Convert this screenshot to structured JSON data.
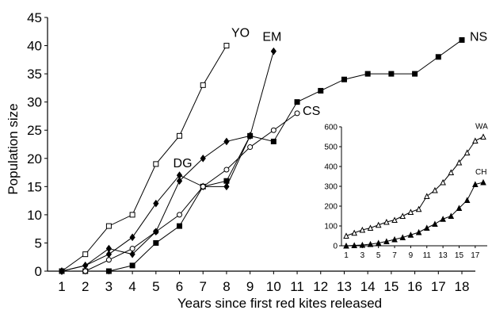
{
  "chart_data": [
    {
      "type": "line",
      "title": "",
      "xlabel": "Years since first red kites released",
      "ylabel": "Population size",
      "xlim": [
        1,
        18
      ],
      "ylim": [
        0,
        45
      ],
      "x_ticks": [
        1,
        2,
        3,
        4,
        5,
        6,
        7,
        8,
        9,
        10,
        11,
        12,
        13,
        14,
        15,
        16,
        17,
        18
      ],
      "y_ticks": [
        0,
        5,
        10,
        15,
        20,
        25,
        30,
        35,
        40,
        45
      ],
      "grid": false,
      "legend": "none; series labeled directly at line ends",
      "series": [
        {
          "name": "YO",
          "marker": "open-square",
          "x": [
            1,
            2,
            3,
            4,
            5,
            6,
            7,
            8
          ],
          "y": [
            0,
            3,
            8,
            10,
            19,
            24,
            33,
            40
          ]
        },
        {
          "name": "EM",
          "marker": "filled-diamond",
          "x": [
            1,
            2,
            3,
            4,
            5,
            6,
            7,
            8,
            9,
            10
          ],
          "y": [
            0,
            1,
            3,
            6,
            12,
            17,
            15,
            15,
            24,
            39
          ]
        },
        {
          "name": "NS",
          "marker": "filled-square",
          "x": [
            1,
            2,
            3,
            4,
            5,
            6,
            7,
            8,
            9,
            10,
            11,
            12,
            13,
            14,
            15,
            16,
            17,
            18
          ],
          "y": [
            0,
            0,
            0,
            1,
            5,
            8,
            15,
            16,
            24,
            23,
            30,
            32,
            34,
            35,
            35,
            35,
            38,
            41
          ]
        },
        {
          "name": "CS",
          "marker": "open-circle",
          "x": [
            1,
            2,
            3,
            4,
            5,
            6,
            7,
            8,
            9,
            10,
            11
          ],
          "y": [
            0,
            0,
            2,
            4,
            7,
            10,
            15,
            18,
            22,
            25,
            28
          ]
        },
        {
          "name": "DG",
          "marker": "filled-diamond",
          "x": [
            1,
            2,
            3,
            4,
            5,
            6,
            7,
            8,
            9
          ],
          "y": [
            0,
            1,
            4,
            3,
            7,
            16,
            20,
            23,
            24
          ]
        }
      ]
    },
    {
      "type": "line",
      "title": "",
      "xlabel": "",
      "ylabel": "",
      "xlim": [
        1,
        18
      ],
      "ylim": [
        0,
        600
      ],
      "x_ticks": [
        1,
        3,
        5,
        7,
        9,
        11,
        13,
        15,
        17
      ],
      "y_ticks": [
        0,
        100,
        200,
        300,
        400,
        500,
        600
      ],
      "grid": false,
      "legend": "none; series labeled directly at line ends",
      "series": [
        {
          "name": "WA",
          "marker": "open-triangle",
          "x": [
            1,
            2,
            3,
            4,
            5,
            6,
            7,
            8,
            9,
            10,
            11,
            12,
            13,
            14,
            15,
            16,
            17,
            18
          ],
          "y": [
            50,
            65,
            80,
            90,
            105,
            120,
            130,
            150,
            170,
            185,
            250,
            280,
            320,
            370,
            420,
            470,
            530,
            550
          ]
        },
        {
          "name": "CH",
          "marker": "filled-triangle",
          "x": [
            1,
            2,
            3,
            4,
            5,
            6,
            7,
            8,
            9,
            10,
            11,
            12,
            13,
            14,
            15,
            16,
            17,
            18
          ],
          "y": [
            0,
            2,
            4,
            8,
            14,
            22,
            32,
            42,
            55,
            68,
            90,
            110,
            135,
            150,
            190,
            230,
            310,
            320
          ]
        }
      ]
    }
  ]
}
